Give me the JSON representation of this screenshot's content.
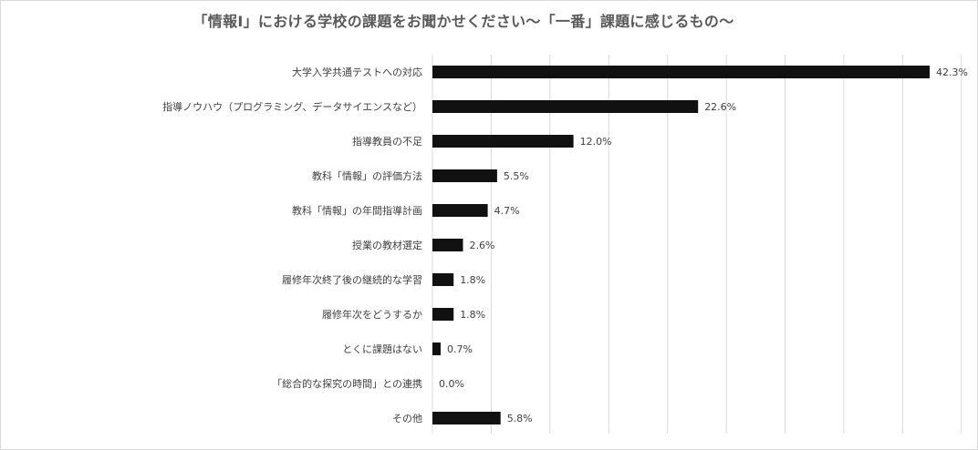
{
  "chart_data": {
    "type": "bar",
    "orientation": "horizontal",
    "title": "「情報Ⅰ」における学校の課題をお聞かせください～「一番」課題に感じるもの～",
    "xlabel": "",
    "ylabel": "",
    "xlim": [
      0,
      45
    ],
    "unit": "%",
    "grid": true,
    "legend": "none",
    "bar_color": "#111111",
    "gridline_color": "#d9d9d9",
    "categories": [
      "大学入学共通テストへの対応",
      "指導ノウハウ（プログラミング、データサイエンスなど）",
      "指導教員の不足",
      "教科「情報」の評価方法",
      "教科「情報」の年間指導計画",
      "授業の教材選定",
      "履修年次終了後の継続的な学習",
      "履修年次をどうするか",
      "とくに課題はない",
      "「総合的な探究の時間」との連携",
      "その他"
    ],
    "values": [
      42.3,
      22.6,
      12.0,
      5.5,
      4.7,
      2.6,
      1.8,
      1.8,
      0.7,
      0.0,
      5.8
    ],
    "data_labels": [
      "42.3%",
      "22.6%",
      "12.0%",
      "5.5%",
      "4.7%",
      "2.6%",
      "1.8%",
      "1.8%",
      "0.7%",
      "0.0%",
      "5.8%"
    ]
  }
}
